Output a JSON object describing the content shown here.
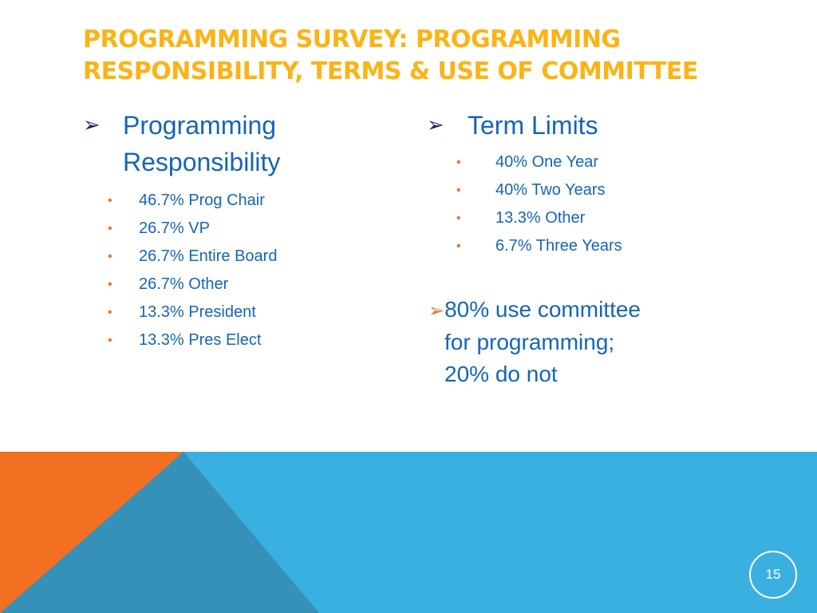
{
  "slide": {
    "title_lines": [
      "Programming Survey:  Programming",
      "Responsibility, Terms & Use of Committee"
    ],
    "page_number": "15",
    "left": {
      "heading_lines": [
        "Programming",
        "Responsibility"
      ],
      "arrow": "➢",
      "bullet_glyph": "•",
      "items": [
        "46.7% Prog Chair",
        "26.7% VP",
        "26.7% Entire Board",
        "26.7% Other",
        "13.3% President",
        "13.3% Pres Elect"
      ]
    },
    "right": {
      "heading": "Term Limits",
      "arrow": "➢",
      "bullet_glyph": "•",
      "items": [
        "40% One Year",
        "40% Two Years",
        "13.3% Other",
        "6.7% Three Years"
      ]
    },
    "committee": {
      "arrow": "➢",
      "lines": [
        "80% use committee",
        "for programming;",
        "20% do not"
      ]
    },
    "colors": {
      "title": "#fbb316",
      "text": "#1565b5",
      "bullet": "#f36f21",
      "band_blue": "#3ab0e0",
      "band_teal": "#3591b8",
      "band_orange": "#f36f21"
    }
  }
}
